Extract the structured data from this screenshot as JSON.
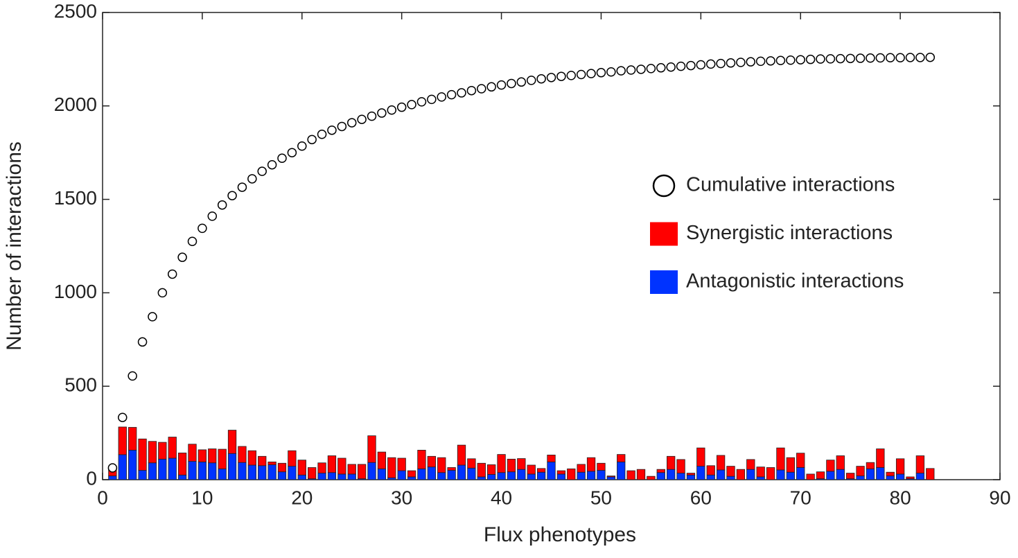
{
  "chart_data": {
    "type": "bar",
    "stacked": true,
    "xlabel": "Flux phenotypes",
    "ylabel": "Number of interactions",
    "xlim": [
      0,
      90
    ],
    "xticks": [
      0,
      10,
      20,
      30,
      40,
      50,
      60,
      70,
      80,
      90
    ],
    "ylim": [
      0,
      2500
    ],
    "yticks": [
      0,
      500,
      1000,
      1500,
      2000,
      2500
    ],
    "x": [
      1,
      2,
      3,
      4,
      5,
      6,
      7,
      8,
      9,
      10,
      11,
      12,
      13,
      14,
      15,
      16,
      17,
      18,
      19,
      20,
      21,
      22,
      23,
      24,
      25,
      26,
      27,
      28,
      29,
      30,
      31,
      32,
      33,
      34,
      35,
      36,
      37,
      38,
      39,
      40,
      41,
      42,
      43,
      44,
      45,
      46,
      47,
      48,
      49,
      50,
      51,
      52,
      53,
      54,
      55,
      56,
      57,
      58,
      59,
      60,
      61,
      62,
      63,
      64,
      65,
      66,
      67,
      68,
      69,
      70,
      71,
      72,
      73,
      74,
      75,
      76,
      77,
      78,
      79,
      80,
      81,
      82,
      83
    ],
    "series": [
      {
        "name": "Cumulative interactions",
        "type": "scatter",
        "color": "#000000",
        "values": [
          63,
          333,
          555,
          737,
          872,
          1000,
          1100,
          1190,
          1275,
          1345,
          1410,
          1470,
          1520,
          1565,
          1610,
          1650,
          1685,
          1720,
          1750,
          1785,
          1820,
          1848,
          1870,
          1890,
          1910,
          1928,
          1945,
          1962,
          1978,
          1993,
          2007,
          2022,
          2035,
          2048,
          2060,
          2070,
          2082,
          2092,
          2102,
          2112,
          2120,
          2128,
          2137,
          2145,
          2152,
          2158,
          2163,
          2168,
          2173,
          2178,
          2182,
          2188,
          2192,
          2196,
          2200,
          2204,
          2208,
          2212,
          2216,
          2220,
          2224,
          2227,
          2230,
          2233,
          2236,
          2239,
          2241,
          2243,
          2245,
          2247,
          2249,
          2251,
          2252,
          2253,
          2254,
          2255,
          2256,
          2257,
          2258,
          2258,
          2259,
          2259,
          2260
        ]
      },
      {
        "name": "Synergistic interactions",
        "type": "bar",
        "color": "#ff0000",
        "values": [
          40,
          148,
          122,
          168,
          115,
          90,
          113,
          118,
          92,
          65,
          75,
          105,
          125,
          86,
          77,
          50,
          15,
          46,
          83,
          80,
          60,
          55,
          90,
          85,
          52,
          77,
          143,
          90,
          108,
          67,
          33,
          100,
          57,
          80,
          15,
          107,
          50,
          73,
          52,
          97,
          68,
          58,
          48,
          20,
          37,
          18,
          58,
          42,
          73,
          38,
          5,
          40,
          48,
          55,
          18,
          17,
          70,
          73,
          10,
          98,
          50,
          78,
          54,
          55,
          53,
          53,
          65,
          118,
          78,
          77,
          30,
          37,
          60,
          73,
          30,
          52,
          34,
          100,
          20,
          82,
          10,
          93,
          60
        ]
      },
      {
        "name": "Antagonistic interactions",
        "type": "bar",
        "color": "#0033ff",
        "values": [
          20,
          134,
          158,
          50,
          90,
          110,
          115,
          25,
          98,
          95,
          90,
          58,
          140,
          92,
          78,
          75,
          80,
          42,
          72,
          25,
          5,
          35,
          38,
          30,
          30,
          5,
          92,
          58,
          10,
          48,
          15,
          58,
          68,
          38,
          50,
          78,
          62,
          15,
          28,
          38,
          42,
          55,
          30,
          40,
          95,
          30,
          0,
          40,
          45,
          50,
          15,
          95,
          0,
          0,
          0,
          38,
          55,
          35,
          25,
          72,
          25,
          52,
          18,
          0,
          55,
          15,
          0,
          52,
          40,
          65,
          0,
          5,
          45,
          55,
          5,
          20,
          58,
          65,
          20,
          30,
          5,
          35,
          0
        ]
      }
    ]
  }
}
